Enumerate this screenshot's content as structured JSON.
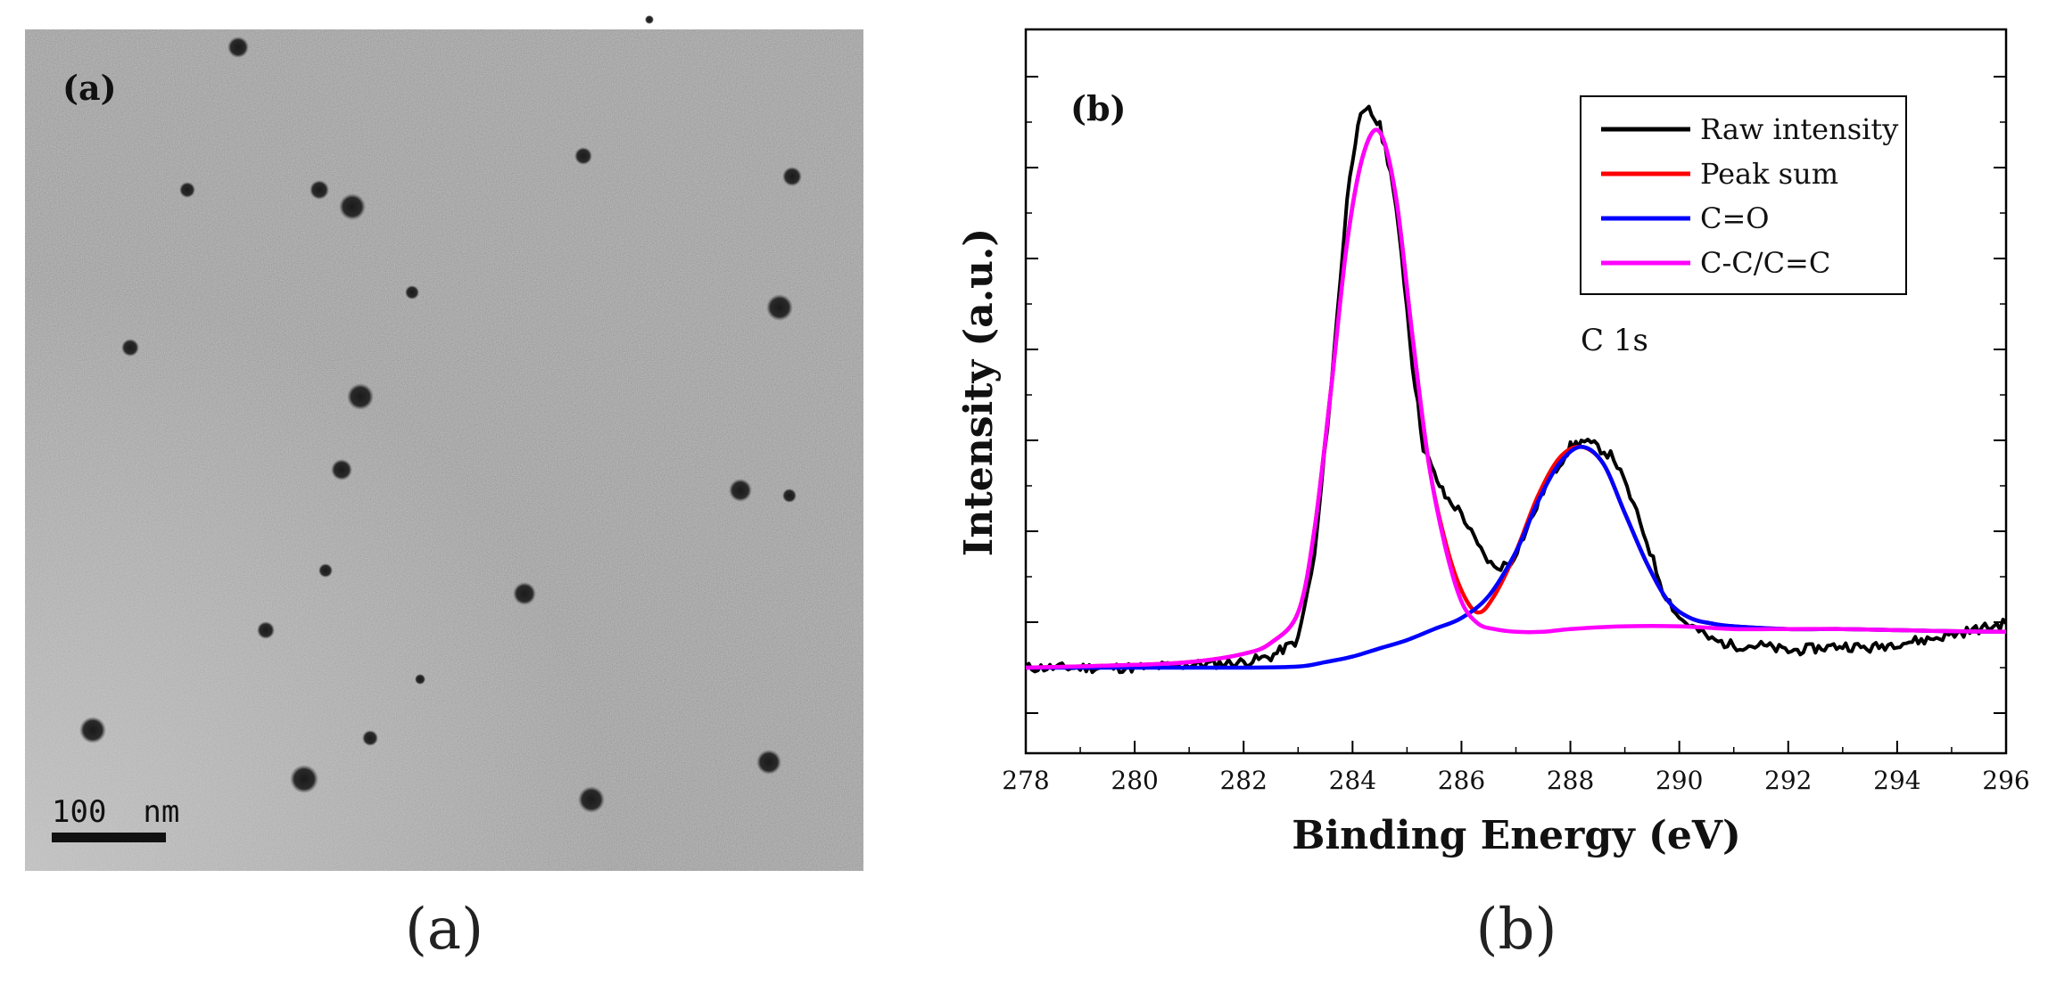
{
  "panel_a": {
    "label": "(a)",
    "scale_bar": "100  nm",
    "caption": "(a)"
  },
  "panel_b": {
    "label": "(b)",
    "annotation": "C 1s",
    "caption": "(b)"
  },
  "colors": {
    "raw": "#000000",
    "peak_sum": "#ff0000",
    "c_o": "#0000ff",
    "c_c": "#ff00ff"
  },
  "chart_data": {
    "type": "line",
    "title": "",
    "xlabel": "Binding Energy (eV)",
    "ylabel": "Intensity (a.u.)",
    "xlim": [
      278,
      296
    ],
    "ylim": [
      0,
      1.1
    ],
    "xticks": [
      "278",
      "280",
      "282",
      "284",
      "286",
      "288",
      "290",
      "292",
      "294",
      "296"
    ],
    "legend": [
      "Raw intensity",
      "Peak sum",
      "C=O",
      "C-C/C=C"
    ],
    "legend_position": "top-right",
    "series": [
      {
        "name": "Raw intensity",
        "x": [
          278,
          279,
          280,
          281,
          282,
          282.5,
          283,
          283.3,
          283.6,
          283.9,
          284.1,
          284.3,
          284.5,
          284.7,
          284.9,
          285.1,
          285.3,
          285.5,
          285.7,
          286.0,
          286.3,
          286.6,
          286.9,
          287.2,
          287.5,
          287.8,
          288.0,
          288.2,
          288.5,
          288.8,
          289.1,
          289.4,
          289.7,
          290.0,
          290.3,
          290.6,
          291,
          291.5,
          292,
          292.5,
          293,
          293.5,
          294,
          294.5,
          295,
          295.5,
          296
        ],
        "values": [
          0.05,
          0.05,
          0.05,
          0.055,
          0.06,
          0.07,
          0.1,
          0.25,
          0.55,
          0.9,
          1.04,
          1.06,
          1.03,
          0.95,
          0.8,
          0.6,
          0.45,
          0.4,
          0.36,
          0.33,
          0.27,
          0.23,
          0.24,
          0.3,
          0.37,
          0.42,
          0.45,
          0.46,
          0.45,
          0.43,
          0.36,
          0.28,
          0.19,
          0.14,
          0.12,
          0.1,
          0.09,
          0.09,
          0.08,
          0.085,
          0.09,
          0.085,
          0.095,
          0.1,
          0.11,
          0.12,
          0.13
        ]
      },
      {
        "name": "Peak sum",
        "x": [
          278,
          280,
          281,
          282,
          282.5,
          283,
          283.3,
          283.6,
          283.9,
          284.2,
          284.5,
          284.8,
          285.1,
          285.4,
          285.7,
          286.0,
          286.3,
          286.6,
          287.0,
          287.4,
          287.8,
          288.2,
          288.6,
          289.0,
          289.4,
          289.8,
          290.2,
          290.6,
          291,
          292,
          293,
          294,
          295,
          296
        ],
        "values": [
          0.05,
          0.055,
          0.06,
          0.075,
          0.095,
          0.15,
          0.3,
          0.55,
          0.82,
          0.98,
          1.02,
          0.9,
          0.65,
          0.42,
          0.28,
          0.19,
          0.15,
          0.18,
          0.26,
          0.36,
          0.43,
          0.45,
          0.42,
          0.33,
          0.24,
          0.17,
          0.14,
          0.13,
          0.125,
          0.12,
          0.12,
          0.118,
          0.116,
          0.115
        ]
      },
      {
        "name": "C=O",
        "x": [
          278,
          280,
          282,
          283,
          283.5,
          284,
          284.5,
          285,
          285.5,
          286,
          286.5,
          287,
          287.4,
          287.8,
          288.2,
          288.6,
          289.0,
          289.4,
          289.8,
          290.2,
          290.6,
          291,
          292,
          293,
          294,
          295,
          296
        ],
        "values": [
          0.05,
          0.05,
          0.05,
          0.052,
          0.06,
          0.07,
          0.085,
          0.1,
          0.12,
          0.14,
          0.18,
          0.26,
          0.35,
          0.42,
          0.45,
          0.42,
          0.33,
          0.24,
          0.17,
          0.14,
          0.13,
          0.125,
          0.12,
          0.12,
          0.118,
          0.116,
          0.115
        ]
      },
      {
        "name": "C-C/C=C",
        "x": [
          278,
          280,
          281,
          282,
          282.5,
          283,
          283.3,
          283.6,
          283.9,
          284.2,
          284.5,
          284.8,
          285.1,
          285.4,
          285.7,
          286.0,
          286.3,
          286.6,
          287,
          287.5,
          288,
          289,
          290,
          291,
          292,
          293,
          294,
          295,
          296
        ],
        "values": [
          0.05,
          0.055,
          0.06,
          0.075,
          0.095,
          0.15,
          0.3,
          0.55,
          0.82,
          0.98,
          1.02,
          0.9,
          0.65,
          0.42,
          0.27,
          0.17,
          0.13,
          0.12,
          0.115,
          0.115,
          0.12,
          0.125,
          0.125,
          0.12,
          0.12,
          0.12,
          0.118,
          0.116,
          0.115
        ]
      }
    ]
  }
}
